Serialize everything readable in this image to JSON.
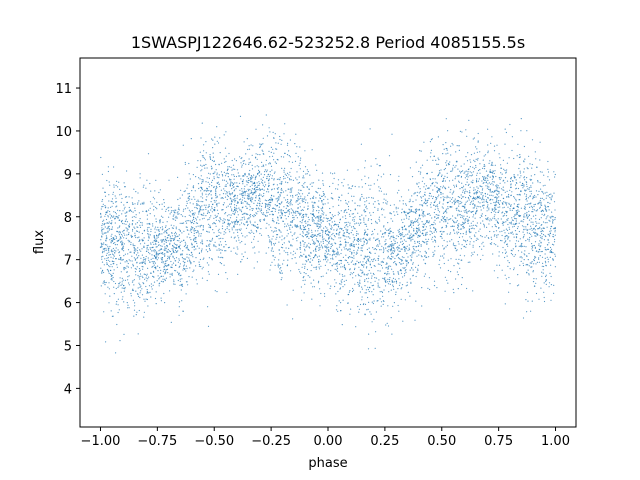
{
  "chart_data": {
    "type": "scatter",
    "title": "1SWASPJ122646.62-523252.8 Period 4085155.5s",
    "xlabel": "phase",
    "ylabel": "flux",
    "xlim": [
      -1.09,
      1.09
    ],
    "ylim": [
      3.1,
      11.7
    ],
    "xticks": [
      -1.0,
      -0.75,
      -0.5,
      -0.25,
      0.0,
      0.25,
      0.5,
      0.75,
      1.0
    ],
    "xtick_labels": [
      "−1.00",
      "−0.75",
      "−0.50",
      "−0.25",
      "0.00",
      "0.25",
      "0.50",
      "0.75",
      "1.00"
    ],
    "yticks": [
      4,
      5,
      6,
      7,
      8,
      9,
      10,
      11
    ],
    "ytick_labels": [
      "4",
      "5",
      "6",
      "7",
      "8",
      "9",
      "10",
      "11"
    ],
    "grid": false,
    "color": "#1f77b4",
    "series": [
      {
        "x": [
          -1.0,
          -0.95,
          -0.9,
          -0.85,
          -0.8,
          -0.75,
          -0.7,
          -0.65,
          -0.6,
          -0.55,
          -0.5,
          -0.45,
          -0.4,
          -0.35,
          -0.3,
          -0.25,
          -0.2,
          -0.15,
          -0.1,
          -0.05,
          0.0,
          0.05,
          0.1,
          0.15,
          0.2,
          0.25,
          0.3,
          0.35,
          0.4,
          0.45,
          0.5,
          0.55,
          0.6,
          0.65,
          0.7,
          0.75,
          0.8,
          0.85,
          0.9,
          0.95,
          1.0
        ],
        "y": [
          7.6,
          7.4,
          7.3,
          7.2,
          7.2,
          7.3,
          7.3,
          7.4,
          7.8,
          8.1,
          8.2,
          8.2,
          8.2,
          8.4,
          8.5,
          8.3,
          8.1,
          8.0,
          7.8,
          7.7,
          7.6,
          7.4,
          7.3,
          7.2,
          7.2,
          7.3,
          7.3,
          7.4,
          7.8,
          8.1,
          8.2,
          8.2,
          8.2,
          8.4,
          8.5,
          8.3,
          8.1,
          8.0,
          7.8,
          7.7,
          7.6
        ]
      }
    ]
  }
}
